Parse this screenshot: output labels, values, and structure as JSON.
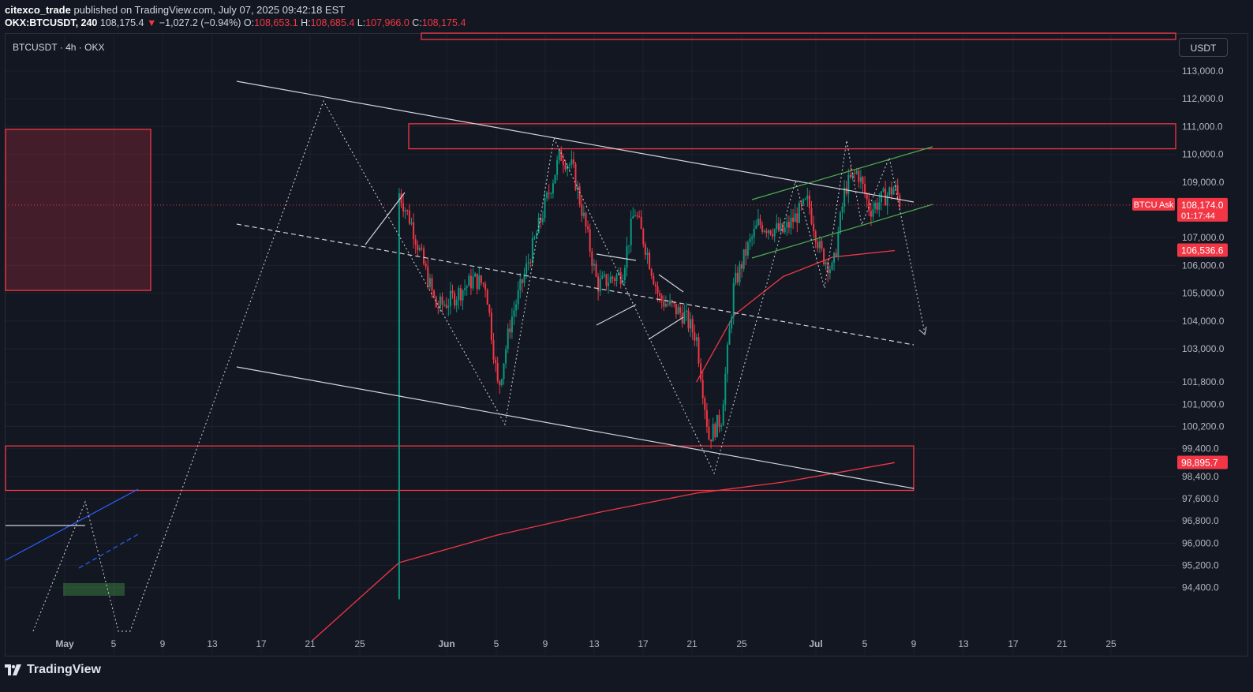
{
  "header": {
    "author": "citexco_trade",
    "published_text": "published on TradingView.com, July 07, 2025 09:42:18 EST",
    "symbol": "OKX:BTCUSDT, 240",
    "last_price": "108,175.4",
    "change_arrow": "▼",
    "change": "−1,027.2 (−0.94%)",
    "open_label": "O:",
    "open": "108,653.1",
    "high_label": "H:",
    "high": "108,685.4",
    "low_label": "L:",
    "low": "107,966.0",
    "close_label": "C:",
    "close": "108,175.4"
  },
  "chart_label": "BTCUSDT · 4h · OKX",
  "currency_badge": "USDT",
  "footer": {
    "brand": "TradingView"
  },
  "colors": {
    "background": "#131722",
    "up": "#089981",
    "down": "#f23645",
    "zone": "#f23645",
    "ma": "#f23645",
    "channel_green": "#4caf50",
    "trendline": "#d1d4dc",
    "blue_line": "#2962ff"
  },
  "chart_data": {
    "type": "candlestick",
    "x_ticks": [
      "May",
      "5",
      "9",
      "13",
      "17",
      "21",
      "25",
      "Jun",
      "5",
      "9",
      "13",
      "17",
      "21",
      "25",
      "Jul",
      "5",
      "9",
      "13",
      "17",
      "21",
      "25"
    ],
    "y_ticks": [
      "113,000.0",
      "112,000.0",
      "111,000.0",
      "110,000.0",
      "109,000.0",
      "107,000.0",
      "106,000.0",
      "105,000.0",
      "104,000.0",
      "103,000.0",
      "101,800.0",
      "101,000.0",
      "100,200.0",
      "99,400.0",
      "98,400.0",
      "97,600.0",
      "96,800.0",
      "96,000.0",
      "95,200.0",
      "94,400.0"
    ],
    "price_labels": [
      {
        "name": "ask",
        "text": "BTCU Ask",
        "value": "108,174.0",
        "timer": "01:17:44",
        "price": 108174
      },
      {
        "name": "ma-short",
        "value": "106,536.6",
        "price": 106536.6
      },
      {
        "name": "ma-long",
        "value": "98,895.7",
        "price": 98895.7
      }
    ],
    "price_path": [
      [
        "Apr 29",
        94000
      ],
      [
        "May 1",
        95200
      ],
      [
        "May 2",
        97700
      ],
      [
        "May 4",
        95800
      ],
      [
        "May 6",
        94000
      ],
      [
        "May 7",
        94500
      ],
      [
        "May 8",
        99000
      ],
      [
        "May 9",
        102800
      ],
      [
        "May 11",
        104000
      ],
      [
        "May 13",
        104500
      ],
      [
        "May 14",
        103000
      ],
      [
        "May 16",
        103200
      ],
      [
        "May 18",
        105800
      ],
      [
        "May 20",
        106500
      ],
      [
        "May 21",
        109500
      ],
      [
        "May 22",
        111600
      ],
      [
        "May 23",
        110500
      ],
      [
        "May 24",
        108500
      ],
      [
        "May 26",
        109200
      ],
      [
        "May 27",
        110000
      ],
      [
        "May 28",
        108600
      ],
      [
        "May 29",
        107500
      ],
      [
        "May 31",
        104500
      ],
      [
        "Jun 1",
        104700
      ],
      [
        "Jun 3",
        105500
      ],
      [
        "Jun 4",
        105300
      ],
      [
        "Jun 5",
        101500
      ],
      [
        "Jun 6",
        104000
      ],
      [
        "Jun 7",
        105500
      ],
      [
        "Jun 9",
        108500
      ],
      [
        "Jun 10",
        110000
      ],
      [
        "Jun 11",
        109500
      ],
      [
        "Jun 12",
        107500
      ],
      [
        "Jun 13",
        105300
      ],
      [
        "Jun 15",
        105700
      ],
      [
        "Jun 16",
        108000
      ],
      [
        "Jun 17",
        106500
      ],
      [
        "Jun 18",
        104800
      ],
      [
        "Jun 20",
        104200
      ],
      [
        "Jun 21",
        103400
      ],
      [
        "Jun 22",
        99800
      ],
      [
        "Jun 23",
        100500
      ],
      [
        "Jun 24",
        105200
      ],
      [
        "Jun 25",
        106500
      ],
      [
        "Jun 26",
        107500
      ],
      [
        "Jun 28",
        107200
      ],
      [
        "Jun 30",
        108300
      ],
      [
        "Jul 1",
        106500
      ],
      [
        "Jul 2",
        105800
      ],
      [
        "Jul 3",
        108800
      ],
      [
        "Jul 4",
        109400
      ],
      [
        "Jul 5",
        108000
      ],
      [
        "Jul 6",
        108400
      ],
      [
        "Jul 7",
        108800
      ],
      [
        "Jul 7b",
        108175
      ]
    ],
    "ma_long": [
      [
        "May 21",
        92500
      ],
      [
        "May 28",
        95300
      ],
      [
        "Jun 5",
        96300
      ],
      [
        "Jun 13",
        97100
      ],
      [
        "Jun 21",
        97800
      ],
      [
        "Jun 28",
        98200
      ],
      [
        "Jul 7",
        98900
      ]
    ],
    "ma_short": [
      [
        "Jun 21",
        101800
      ],
      [
        "Jun 24",
        104200
      ],
      [
        "Jun 28",
        105600
      ],
      [
        "Jul 2",
        106300
      ],
      [
        "Jul 7",
        106536
      ]
    ],
    "zones": [
      {
        "name": "supply-zone-top",
        "from": "Jun 1",
        "to": "Jul 25",
        "high": 111100,
        "low": 110200
      },
      {
        "name": "demand-zone",
        "from": "Apr 29",
        "to": "Jul 9",
        "high": 99500,
        "low": 97900
      },
      {
        "name": "left-supply-zone",
        "from": "Apr 29",
        "to": "May 9",
        "high": 110900,
        "low": 105100
      }
    ]
  }
}
